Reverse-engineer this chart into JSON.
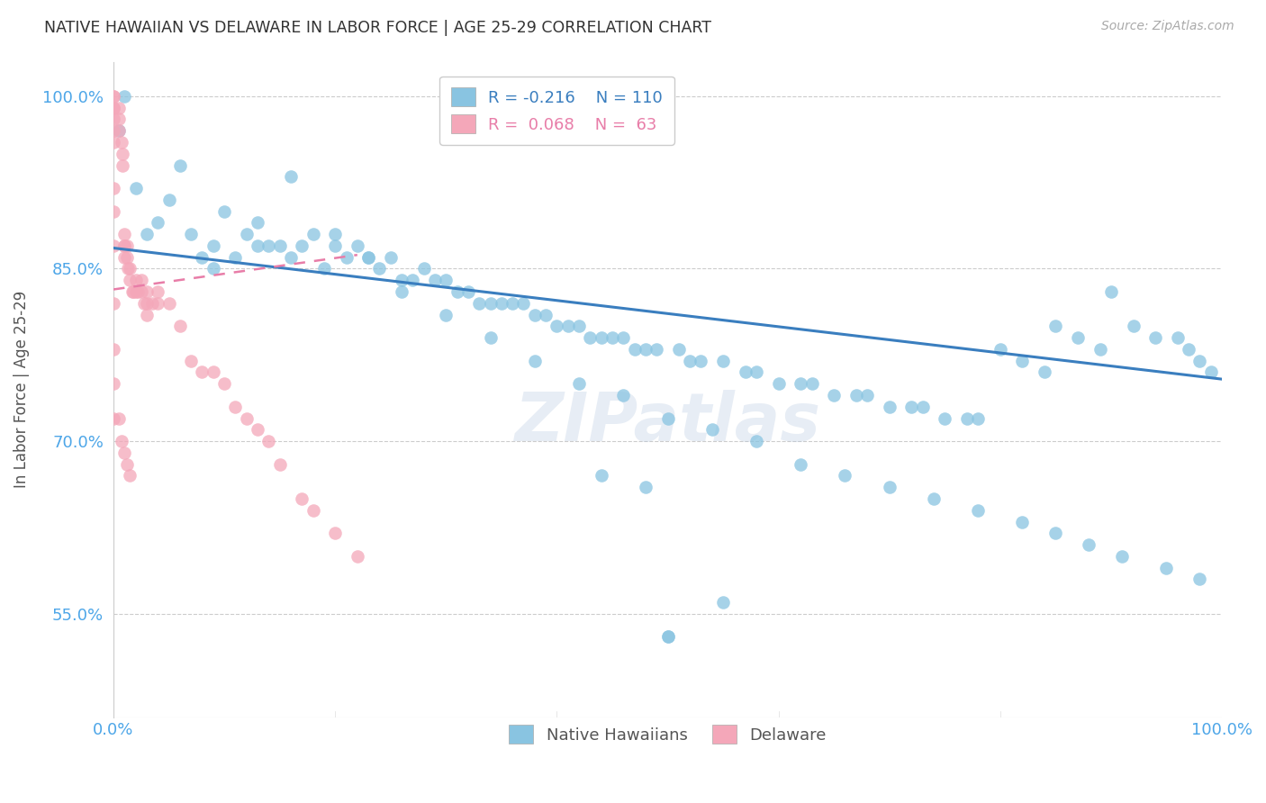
{
  "title": "NATIVE HAWAIIAN VS DELAWARE IN LABOR FORCE | AGE 25-29 CORRELATION CHART",
  "source_text": "Source: ZipAtlas.com",
  "ylabel": "In Labor Force | Age 25-29",
  "xmin": 0.0,
  "xmax": 1.0,
  "ymin": 0.46,
  "ymax": 1.03,
  "ytick_labels": [
    "55.0%",
    "70.0%",
    "85.0%",
    "100.0%"
  ],
  "ytick_values": [
    0.55,
    0.7,
    0.85,
    1.0
  ],
  "xtick_labels": [
    "0.0%",
    "100.0%"
  ],
  "xtick_values": [
    0.0,
    1.0
  ],
  "grid_color": "#cccccc",
  "background_color": "#ffffff",
  "blue_color": "#89c4e1",
  "pink_color": "#f4a7b9",
  "blue_line_color": "#3a7ebf",
  "pink_line_color": "#e87da8",
  "legend_R_blue": "-0.216",
  "legend_N_blue": "110",
  "legend_R_pink": "0.068",
  "legend_N_pink": "63",
  "watermark": "ZIPatlas",
  "watermark_color": "#b0c4de",
  "blue_trendline": [
    0.0,
    0.868,
    1.0,
    0.754
  ],
  "pink_trendline": [
    0.0,
    0.832,
    0.22,
    0.862
  ],
  "blue_scatter_x": [
    0.005,
    0.01,
    0.02,
    0.03,
    0.04,
    0.05,
    0.06,
    0.07,
    0.08,
    0.09,
    0.1,
    0.11,
    0.12,
    0.13,
    0.14,
    0.15,
    0.16,
    0.17,
    0.18,
    0.19,
    0.2,
    0.21,
    0.22,
    0.23,
    0.24,
    0.25,
    0.26,
    0.27,
    0.28,
    0.29,
    0.3,
    0.31,
    0.32,
    0.33,
    0.34,
    0.35,
    0.36,
    0.37,
    0.38,
    0.39,
    0.4,
    0.41,
    0.42,
    0.43,
    0.44,
    0.45,
    0.46,
    0.47,
    0.48,
    0.49,
    0.5,
    0.5,
    0.51,
    0.52,
    0.53,
    0.55,
    0.57,
    0.58,
    0.6,
    0.62,
    0.63,
    0.65,
    0.67,
    0.68,
    0.7,
    0.72,
    0.73,
    0.75,
    0.77,
    0.78,
    0.8,
    0.82,
    0.84,
    0.85,
    0.87,
    0.89,
    0.9,
    0.92,
    0.94,
    0.96,
    0.97,
    0.98,
    0.99,
    0.09,
    0.13,
    0.16,
    0.2,
    0.23,
    0.26,
    0.3,
    0.34,
    0.38,
    0.42,
    0.46,
    0.5,
    0.54,
    0.58,
    0.62,
    0.66,
    0.7,
    0.74,
    0.78,
    0.82,
    0.85,
    0.88,
    0.91,
    0.95,
    0.98,
    0.44,
    0.48,
    0.55
  ],
  "blue_scatter_y": [
    0.97,
    1.0,
    0.92,
    0.88,
    0.89,
    0.91,
    0.94,
    0.88,
    0.86,
    0.87,
    0.9,
    0.86,
    0.88,
    0.87,
    0.87,
    0.87,
    0.86,
    0.87,
    0.88,
    0.85,
    0.87,
    0.86,
    0.87,
    0.86,
    0.85,
    0.86,
    0.84,
    0.84,
    0.85,
    0.84,
    0.84,
    0.83,
    0.83,
    0.82,
    0.82,
    0.82,
    0.82,
    0.82,
    0.81,
    0.81,
    0.8,
    0.8,
    0.8,
    0.79,
    0.79,
    0.79,
    0.79,
    0.78,
    0.78,
    0.78,
    0.53,
    0.53,
    0.78,
    0.77,
    0.77,
    0.77,
    0.76,
    0.76,
    0.75,
    0.75,
    0.75,
    0.74,
    0.74,
    0.74,
    0.73,
    0.73,
    0.73,
    0.72,
    0.72,
    0.72,
    0.78,
    0.77,
    0.76,
    0.8,
    0.79,
    0.78,
    0.83,
    0.8,
    0.79,
    0.79,
    0.78,
    0.77,
    0.76,
    0.85,
    0.89,
    0.93,
    0.88,
    0.86,
    0.83,
    0.81,
    0.79,
    0.77,
    0.75,
    0.74,
    0.72,
    0.71,
    0.7,
    0.68,
    0.67,
    0.66,
    0.65,
    0.64,
    0.63,
    0.62,
    0.61,
    0.6,
    0.59,
    0.58,
    0.67,
    0.66,
    0.56
  ],
  "pink_scatter_x": [
    0.0,
    0.0,
    0.0,
    0.0,
    0.0,
    0.0,
    0.0,
    0.0,
    0.0,
    0.0,
    0.0,
    0.0,
    0.005,
    0.005,
    0.005,
    0.007,
    0.008,
    0.008,
    0.01,
    0.01,
    0.01,
    0.01,
    0.012,
    0.012,
    0.013,
    0.015,
    0.015,
    0.017,
    0.018,
    0.02,
    0.02,
    0.022,
    0.025,
    0.025,
    0.028,
    0.03,
    0.03,
    0.03,
    0.035,
    0.04,
    0.04,
    0.05,
    0.06,
    0.07,
    0.08,
    0.09,
    0.1,
    0.11,
    0.12,
    0.13,
    0.14,
    0.15,
    0.17,
    0.18,
    0.2,
    0.22,
    0.0,
    0.0,
    0.005,
    0.007,
    0.01,
    0.012,
    0.015
  ],
  "pink_scatter_y": [
    1.0,
    1.0,
    0.99,
    0.99,
    0.98,
    0.97,
    0.96,
    0.92,
    0.9,
    0.87,
    0.82,
    0.78,
    0.99,
    0.98,
    0.97,
    0.96,
    0.95,
    0.94,
    0.88,
    0.87,
    0.87,
    0.86,
    0.87,
    0.86,
    0.85,
    0.85,
    0.84,
    0.83,
    0.83,
    0.83,
    0.84,
    0.83,
    0.84,
    0.83,
    0.82,
    0.83,
    0.82,
    0.81,
    0.82,
    0.83,
    0.82,
    0.82,
    0.8,
    0.77,
    0.76,
    0.76,
    0.75,
    0.73,
    0.72,
    0.71,
    0.7,
    0.68,
    0.65,
    0.64,
    0.62,
    0.6,
    0.75,
    0.72,
    0.72,
    0.7,
    0.69,
    0.68,
    0.67
  ]
}
